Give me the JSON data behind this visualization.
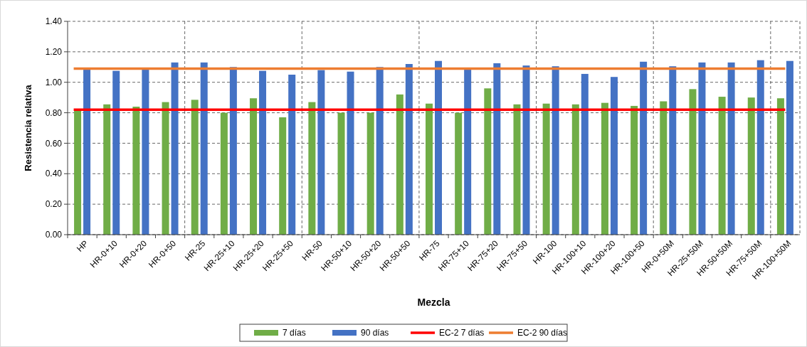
{
  "chart_data": {
    "type": "bar",
    "xlabel": "Mezcla",
    "ylabel": "Resistencia relativa",
    "categories": [
      "HP",
      "HR-0+10",
      "HR-0+20",
      "HR-0+50",
      "HR-25",
      "HR-25+10",
      "HR-25+20",
      "HR-25+50",
      "HR-50",
      "HR-50+10",
      "HR-50+20",
      "HR-50+50",
      "HR-75",
      "HR-75+10",
      "HR-75+20",
      "HR-75+50",
      "HR-100",
      "HR-100+10",
      "HR-100+20",
      "HR-100+50",
      "HR-0+50M",
      "HR-25+50M",
      "HR-50+50M",
      "HR-75+50M",
      "HR-100+50M"
    ],
    "series": [
      {
        "name": "7 días",
        "color": "#70ad47",
        "values": [
          0.82,
          0.855,
          0.84,
          0.87,
          0.885,
          0.8,
          0.895,
          0.77,
          0.87,
          0.8,
          0.8,
          0.92,
          0.86,
          0.8,
          0.96,
          0.855,
          0.86,
          0.855,
          0.865,
          0.845,
          0.875,
          0.955,
          0.905,
          0.9,
          0.895
        ]
      },
      {
        "name": "90 días",
        "color": "#4472c4",
        "values": [
          1.09,
          1.075,
          1.085,
          1.13,
          1.13,
          1.1,
          1.075,
          1.05,
          1.08,
          1.07,
          1.1,
          1.12,
          1.14,
          1.09,
          1.125,
          1.11,
          1.105,
          1.055,
          1.035,
          1.135,
          1.105,
          1.13,
          1.13,
          1.145,
          1.14
        ]
      }
    ],
    "ref_lines": [
      {
        "axis": "y",
        "value": 0.82,
        "label": "EC-2 7 días",
        "color": "#ff0000"
      },
      {
        "axis": "y",
        "value": 1.09,
        "label": "EC-2 90 días",
        "color": "#ed7d31"
      }
    ],
    "ylim": [
      0,
      1.4
    ],
    "yticks": [
      {
        "value": 0,
        "label": "0.00"
      },
      {
        "value": 0.2,
        "label": "0.20"
      },
      {
        "value": 0.4,
        "label": "0.40"
      },
      {
        "value": 0.6,
        "label": "0.60"
      },
      {
        "value": 0.8,
        "label": "0.80"
      },
      {
        "value": 1,
        "label": "1.00"
      },
      {
        "value": 1.2,
        "label": "1.20"
      },
      {
        "value": 1.4,
        "label": "1.40"
      }
    ],
    "grid": "y",
    "legend": "bottom"
  }
}
